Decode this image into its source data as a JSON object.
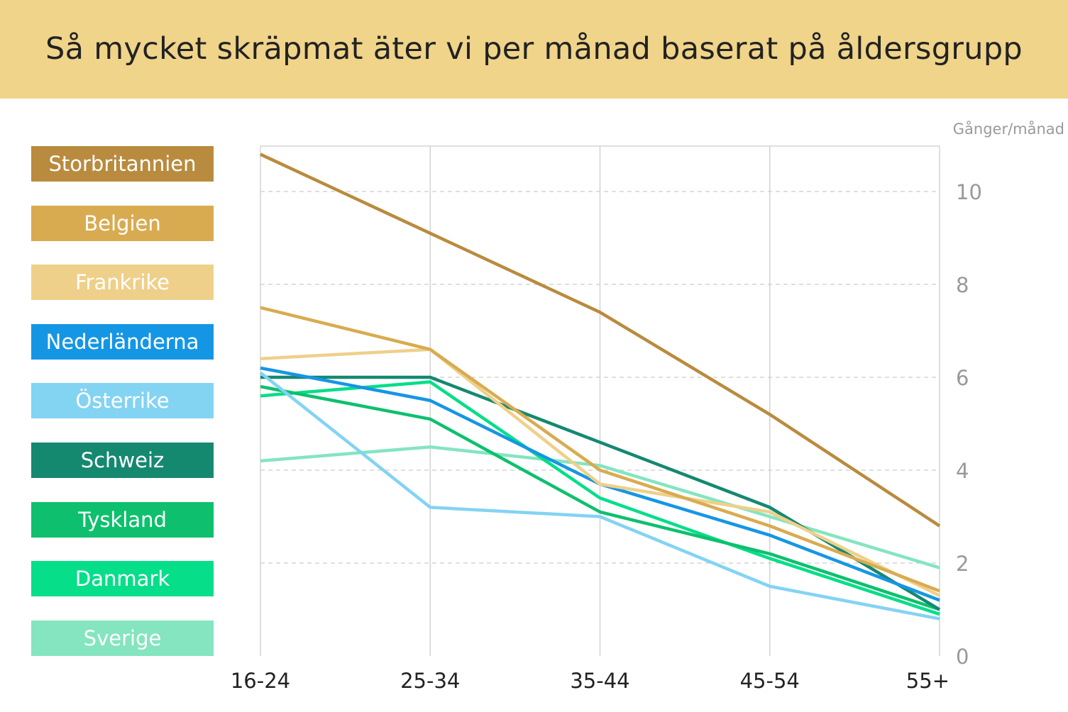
{
  "title": "Så mycket skräpmat äter vi per månad baserat på åldersgrupp",
  "unit_label": "Gånger/månad",
  "colors": {
    "header_bg": "#efd48a",
    "grid": "#cccccc",
    "axis_text": "#999999",
    "tick_text": "#222222"
  },
  "chart_data": {
    "type": "line",
    "title": "Så mycket skräpmat äter vi per månad baserat på åldersgrupp",
    "xlabel": "",
    "ylabel": "Gånger/månad",
    "categories": [
      "16-24",
      "25-34",
      "35-44",
      "45-54",
      "55+"
    ],
    "ylim": [
      0,
      11
    ],
    "yticks": [
      "0",
      "2",
      "4",
      "6",
      "8",
      "10"
    ],
    "grid": true,
    "legend_position": "left",
    "series": [
      {
        "name": "Storbritannien",
        "color": "#b98b3e",
        "values": [
          10.8,
          9.1,
          7.4,
          5.2,
          2.8
        ]
      },
      {
        "name": "Belgien",
        "color": "#d9ab50",
        "values": [
          7.5,
          6.6,
          4.0,
          2.8,
          1.4
        ]
      },
      {
        "name": "Frankrike",
        "color": "#efd08a",
        "values": [
          6.4,
          6.6,
          3.7,
          3.1,
          1.3
        ]
      },
      {
        "name": "Nederländerna",
        "color": "#1596e4",
        "values": [
          6.2,
          5.5,
          3.7,
          2.6,
          1.2
        ]
      },
      {
        "name": "Österrike",
        "color": "#83d3f3",
        "values": [
          6.1,
          3.2,
          3.0,
          1.5,
          0.8
        ]
      },
      {
        "name": "Schweiz",
        "color": "#148970",
        "values": [
          6.0,
          6.0,
          4.6,
          3.2,
          1.0
        ]
      },
      {
        "name": "Tyskland",
        "color": "#0ec06e",
        "values": [
          5.8,
          5.1,
          3.1,
          2.2,
          1.0
        ]
      },
      {
        "name": "Danmark",
        "color": "#06de8a",
        "values": [
          5.6,
          5.9,
          3.4,
          2.1,
          0.9
        ]
      },
      {
        "name": "Sverige",
        "color": "#84e5c0",
        "values": [
          4.2,
          4.5,
          4.1,
          3.0,
          1.9
        ]
      }
    ]
  }
}
